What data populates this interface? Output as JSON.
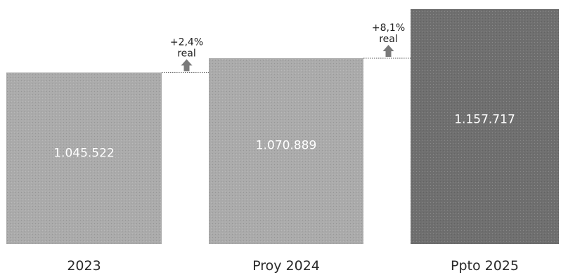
{
  "chart_data": {
    "type": "bar",
    "categories": [
      "2023",
      "Proy 2024",
      "Ppto 2025"
    ],
    "values": [
      1045522,
      1070889,
      1157717
    ],
    "value_labels": [
      "1.045.522",
      "1.070.889",
      "1.157.717"
    ],
    "bar_colors": [
      "#ababab",
      "#ababab",
      "#6f6f6f"
    ],
    "annotations": [
      {
        "between": [
          "2023",
          "Proy 2024"
        ],
        "change": "+2,4%",
        "note": "real",
        "arrow": "up"
      },
      {
        "between": [
          "Proy 2024",
          "Ppto 2025"
        ],
        "change": "+8,1%",
        "note": "real",
        "arrow": "up"
      }
    ],
    "title": "",
    "xlabel": "",
    "ylabel": "",
    "ylim": [
      742000,
      1157717
    ],
    "grid": false,
    "legend": "none"
  }
}
